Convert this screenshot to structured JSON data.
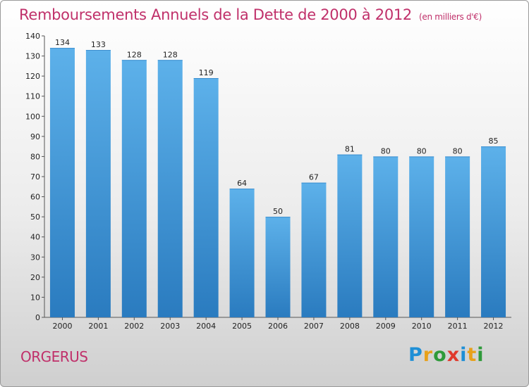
{
  "header": {
    "title": "Remboursements Annuels de la Dette de 2000 à 2012",
    "unit": "(en milliers d'€)"
  },
  "footer": {
    "place": "ORGERUS",
    "logo": "Proxiti"
  },
  "colors": {
    "title": "#c0306a",
    "bar_top": "#5db1ea",
    "bar_bottom": "#2a7bbf"
  },
  "chart_data": {
    "type": "bar",
    "categories": [
      "2000",
      "2001",
      "2002",
      "2003",
      "2004",
      "2005",
      "2006",
      "2007",
      "2008",
      "2009",
      "2010",
      "2011",
      "2012"
    ],
    "values": [
      134,
      133,
      128,
      128,
      119,
      64,
      50,
      67,
      81,
      80,
      80,
      80,
      85
    ],
    "ylim": [
      0,
      140
    ],
    "yticks": [
      0,
      10,
      20,
      30,
      40,
      50,
      60,
      70,
      80,
      90,
      100,
      110,
      120,
      130,
      140
    ],
    "grid": false
  }
}
